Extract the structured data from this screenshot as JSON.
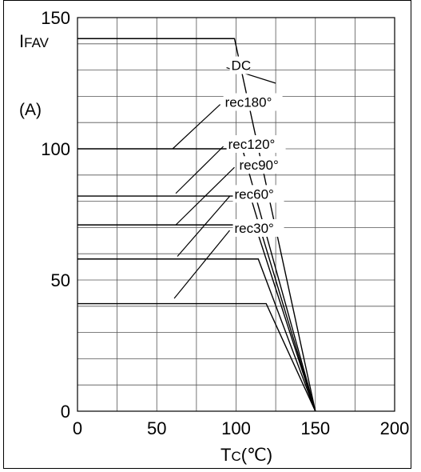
{
  "chart_data": {
    "type": "line",
    "ylabel_main": "I",
    "ylabel_sub": "FAV",
    "yunit": "(A)",
    "xlabel_main": "T",
    "xlabel_sub": "C",
    "xunit": "(℃)",
    "xlim": [
      0,
      200
    ],
    "ylim": [
      0,
      150
    ],
    "xticks": [
      0,
      50,
      100,
      150,
      200
    ],
    "yticks": [
      0,
      50,
      100,
      150
    ],
    "grid": true,
    "series": [
      {
        "name": "DC",
        "x": [
          0,
          99,
          150
        ],
        "y": [
          142,
          142,
          0
        ]
      },
      {
        "name": "rec180°",
        "x": [
          0,
          104,
          150
        ],
        "y": [
          100,
          100,
          0
        ]
      },
      {
        "name": "rec120°",
        "x": [
          0,
          109,
          150
        ],
        "y": [
          82,
          82,
          0
        ]
      },
      {
        "name": "rec90°",
        "x": [
          0,
          112,
          150
        ],
        "y": [
          71,
          71,
          0
        ]
      },
      {
        "name": "rec60°",
        "x": [
          0,
          114,
          150
        ],
        "y": [
          58,
          58,
          0
        ]
      },
      {
        "name": "rec30°",
        "x": [
          0,
          119,
          150
        ],
        "y": [
          41,
          41,
          0
        ]
      }
    ],
    "annotations": [
      {
        "text": "DC",
        "label_at": [
          96,
          130
        ],
        "point_to": [
          125,
          125
        ]
      },
      {
        "text": "rec180°",
        "label_at": [
          92,
          116
        ],
        "point_to": [
          60,
          100
        ]
      },
      {
        "text": "rec120°",
        "label_at": [
          94,
          100
        ],
        "point_to": [
          62,
          83
        ]
      },
      {
        "text": "rec90°",
        "label_at": [
          101,
          92
        ],
        "point_to": [
          62,
          71
        ]
      },
      {
        "text": "rec60°",
        "label_at": [
          98,
          81
        ],
        "point_to": [
          63,
          59
        ]
      },
      {
        "text": "rec30°",
        "label_at": [
          98,
          68
        ],
        "point_to": [
          61,
          43
        ]
      }
    ]
  }
}
